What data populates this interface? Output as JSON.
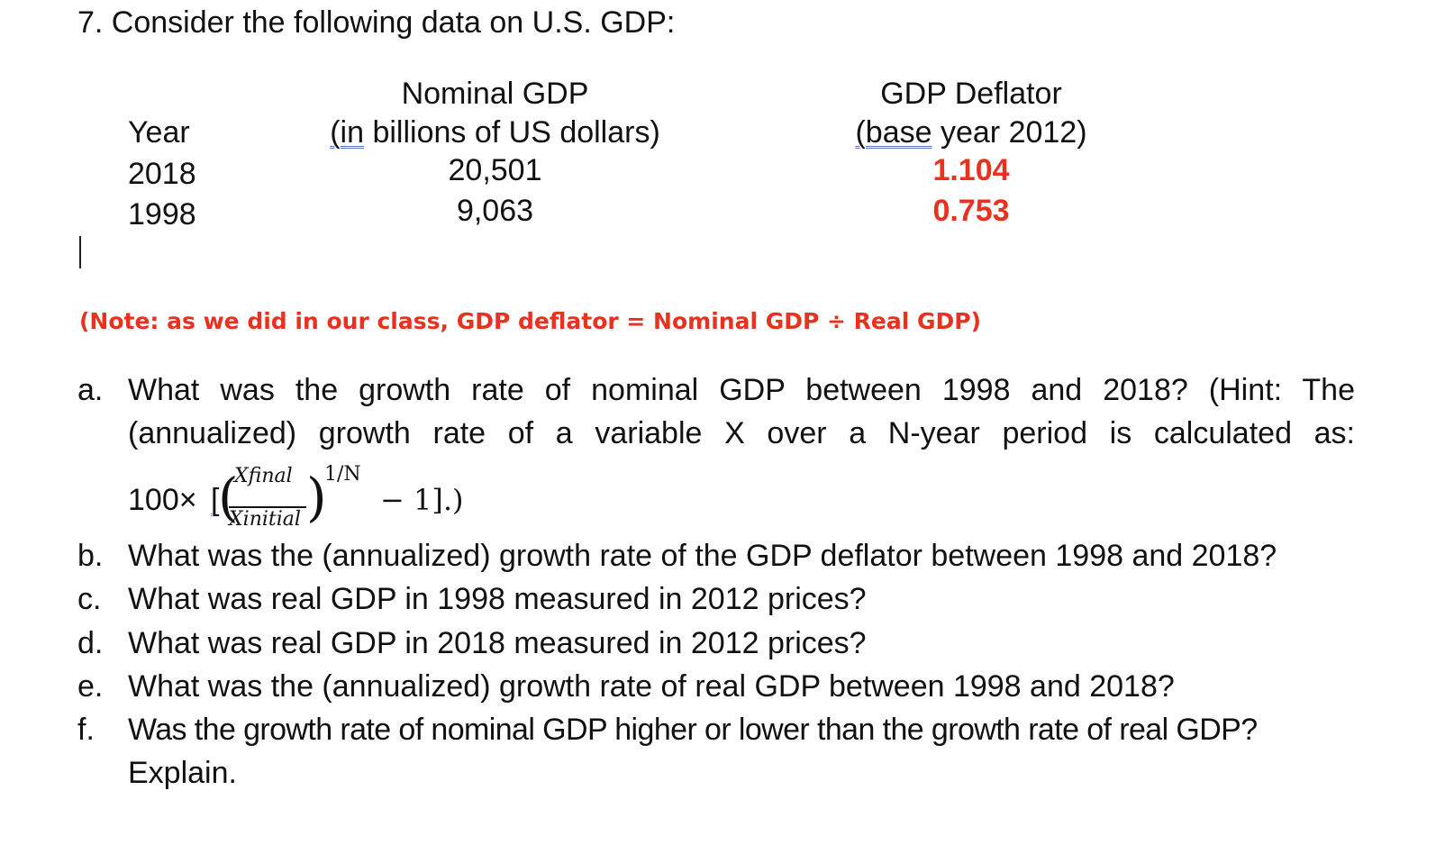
{
  "heading": "7. Consider the following data on U.S. GDP:",
  "table": {
    "year_header": "Year",
    "nominal_header_line1": "Nominal GDP",
    "nominal_header_line2_prefix": "(in",
    "nominal_header_line2_rest": " billions of US dollars)",
    "deflator_header_line1": "GDP Deflator",
    "deflator_header_line2_prefix": "(base",
    "deflator_header_line2_rest": " year 2012)",
    "rows": [
      {
        "year": "2018",
        "nominal": "20,501",
        "deflator": "1.104"
      },
      {
        "year": "1998",
        "nominal": "9,063",
        "deflator": "0.753"
      }
    ]
  },
  "note": "(Note: as we did in our class, GDP deflator = Nominal GDP ÷ Real GDP)",
  "questions": {
    "a": {
      "letter": "a.",
      "line1": "What was the growth rate of nominal GDP between 1998 and 2018? (Hint: The",
      "line2": "(annualized) growth rate of a variable X over a N-year period is calculated as:"
    },
    "formula": {
      "prefix": "100×",
      "bracket": "[",
      "numerator": "X",
      "numerator_sub": "final",
      "denominator": "X",
      "denominator_sub": "initial",
      "exponent": "1/N",
      "suffix": "− 1].)"
    },
    "b": {
      "letter": "b.",
      "text": "What was the (annualized) growth rate of the GDP deflator between 1998 and 2018?"
    },
    "c": {
      "letter": "c.",
      "text": "What was real GDP in 1998 measured in 2012 prices?"
    },
    "d": {
      "letter": "d.",
      "text": "What was real GDP in 2018 measured in 2012 prices?"
    },
    "e": {
      "letter": "e.",
      "text": "What was the (annualized) growth rate of real GDP between 1998 and 2018?"
    },
    "f": {
      "letter": "f.",
      "text": "Was the growth rate of nominal GDP higher or lower than the growth rate of real GDP?",
      "text2": "Explain."
    }
  },
  "colors": {
    "note_red": "#e8311e",
    "value_red": "#e8311e",
    "proofing_underline": "#5b74c9"
  }
}
